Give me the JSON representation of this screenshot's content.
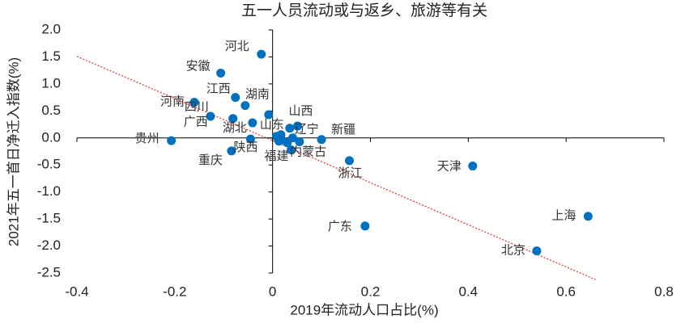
{
  "chart_data": {
    "type": "scatter",
    "title": "五一人员流动或与返乡、旅游等有关",
    "x_label": "2019年流动人口占比(%)",
    "y_label": "2021年五一首日净迁入指数(%)",
    "color": "#0070c0",
    "x": [
      -0.023,
      -0.106,
      -0.16,
      -0.076,
      -0.056,
      -0.127,
      -0.081,
      -0.041,
      -0.008,
      0.051,
      0.035,
      0.1,
      -0.207,
      -0.045,
      -0.084,
      0.013,
      0.038,
      0.157,
      0.409,
      0.189,
      0.645,
      0.54,
      0.008,
      0.018,
      0.03,
      0.041,
      0.055,
      0.017
    ],
    "values": [
      1.55,
      1.2,
      0.66,
      0.75,
      0.6,
      0.4,
      0.36,
      0.28,
      0.43,
      0.22,
      0.18,
      -0.03,
      -0.05,
      -0.02,
      -0.24,
      -0.06,
      -0.22,
      -0.42,
      -0.52,
      -1.63,
      -1.45,
      -2.09,
      0.03,
      -0.03,
      -0.09,
      0.0,
      -0.07,
      0.06
    ],
    "point_labels": [
      "河北",
      "安徽",
      "河南",
      "江西",
      "湖南",
      "四川",
      "广西",
      "湖北",
      "山东",
      "山西",
      "辽宁",
      "新疆",
      "贵州",
      "陕西",
      "重庆",
      "福建",
      "内蒙古",
      "浙江",
      "天津",
      "广东",
      "上海",
      "北京",
      null,
      null,
      null,
      null,
      null,
      null
    ],
    "trendline": {
      "x": [
        -0.4,
        0.66
      ],
      "y": [
        1.51,
        -2.62
      ],
      "color": "#e0302a"
    },
    "xlim": [
      -0.4,
      0.8
    ],
    "xticks": [
      -0.4,
      -0.2,
      0,
      0.2,
      0.4,
      0.6,
      0.8
    ],
    "ylim": [
      -2.5,
      2.0
    ],
    "yticks": [
      {
        "value": 2.0,
        "label": "2.0"
      },
      1.5,
      {
        "value": 1.0,
        "label": "1.0"
      },
      0.5,
      {
        "value": 0.0,
        "label": "0.0"
      },
      -0.5,
      {
        "value": -1.0,
        "label": "-1.0"
      },
      -1.5,
      {
        "value": -2.0,
        "label": "-2.0"
      },
      -2.5
    ]
  }
}
